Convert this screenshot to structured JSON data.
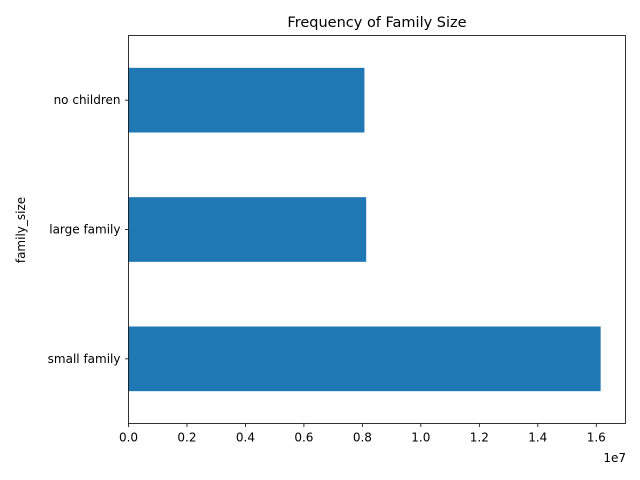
{
  "chart_data": {
    "type": "bar",
    "orientation": "horizontal",
    "title": "Frequency of Family Size",
    "xlabel": "",
    "ylabel": "family_size",
    "categories": [
      "small family",
      "large family",
      "no children"
    ],
    "values": [
      16150000,
      8130000,
      8070000
    ],
    "xlim": [
      0,
      17000000
    ],
    "x_ticks": [
      0,
      2000000,
      4000000,
      6000000,
      8000000,
      10000000,
      12000000,
      14000000,
      16000000
    ],
    "x_tick_labels": [
      "0.0",
      "0.2",
      "0.4",
      "0.6",
      "0.8",
      "1.0",
      "1.2",
      "1.4",
      "1.6"
    ],
    "x_offset_label": "1e7",
    "bar_color": "#1f77b4",
    "grid": false,
    "legend": false
  }
}
